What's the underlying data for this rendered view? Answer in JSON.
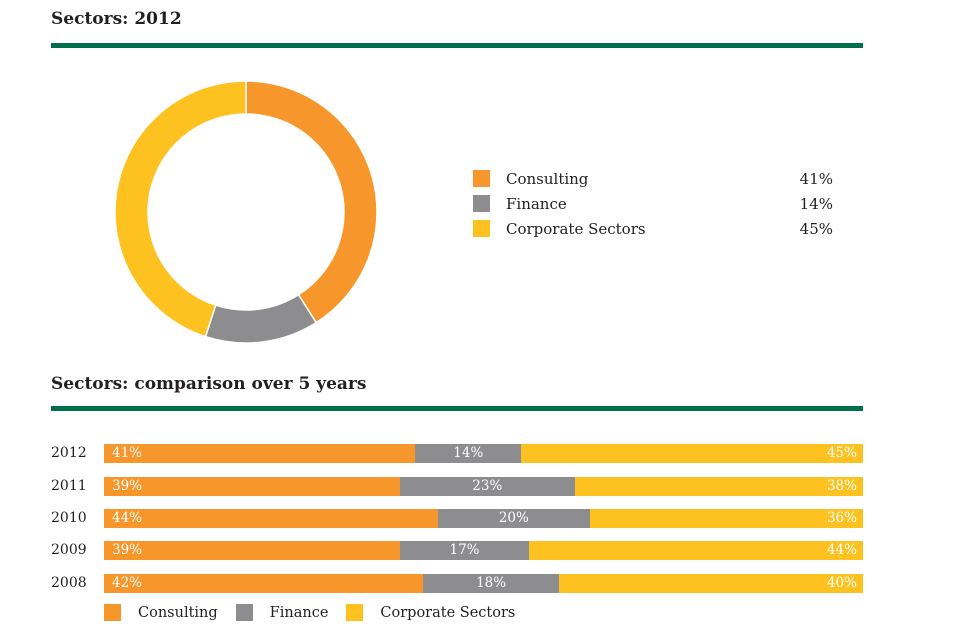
{
  "colors": {
    "Consulting": "#f7962a",
    "Finance": "#8d8d8f",
    "Corporate Sectors": "#fdc220",
    "rule": "#00704a"
  },
  "chart_data": [
    {
      "type": "pie",
      "title": "Sectors: 2012",
      "donut": true,
      "labels": [
        "Consulting",
        "Finance",
        "Corporate Sectors"
      ],
      "values": [
        41,
        14,
        45
      ],
      "value_labels": [
        "41%",
        "14%",
        "45%"
      ],
      "legend": "right"
    },
    {
      "type": "bar",
      "orientation": "horizontal",
      "stacked": true,
      "normalized": true,
      "title": "Sectors: comparison over 5 years",
      "categories": [
        "2012",
        "2011",
        "2010",
        "2009",
        "2008"
      ],
      "series": [
        {
          "name": "Consulting",
          "values": [
            41,
            39,
            44,
            39,
            42
          ]
        },
        {
          "name": "Finance",
          "values": [
            14,
            23,
            20,
            17,
            18
          ]
        },
        {
          "name": "Corporate Sectors",
          "values": [
            45,
            38,
            36,
            44,
            40
          ]
        }
      ],
      "legend": "bottom"
    }
  ]
}
